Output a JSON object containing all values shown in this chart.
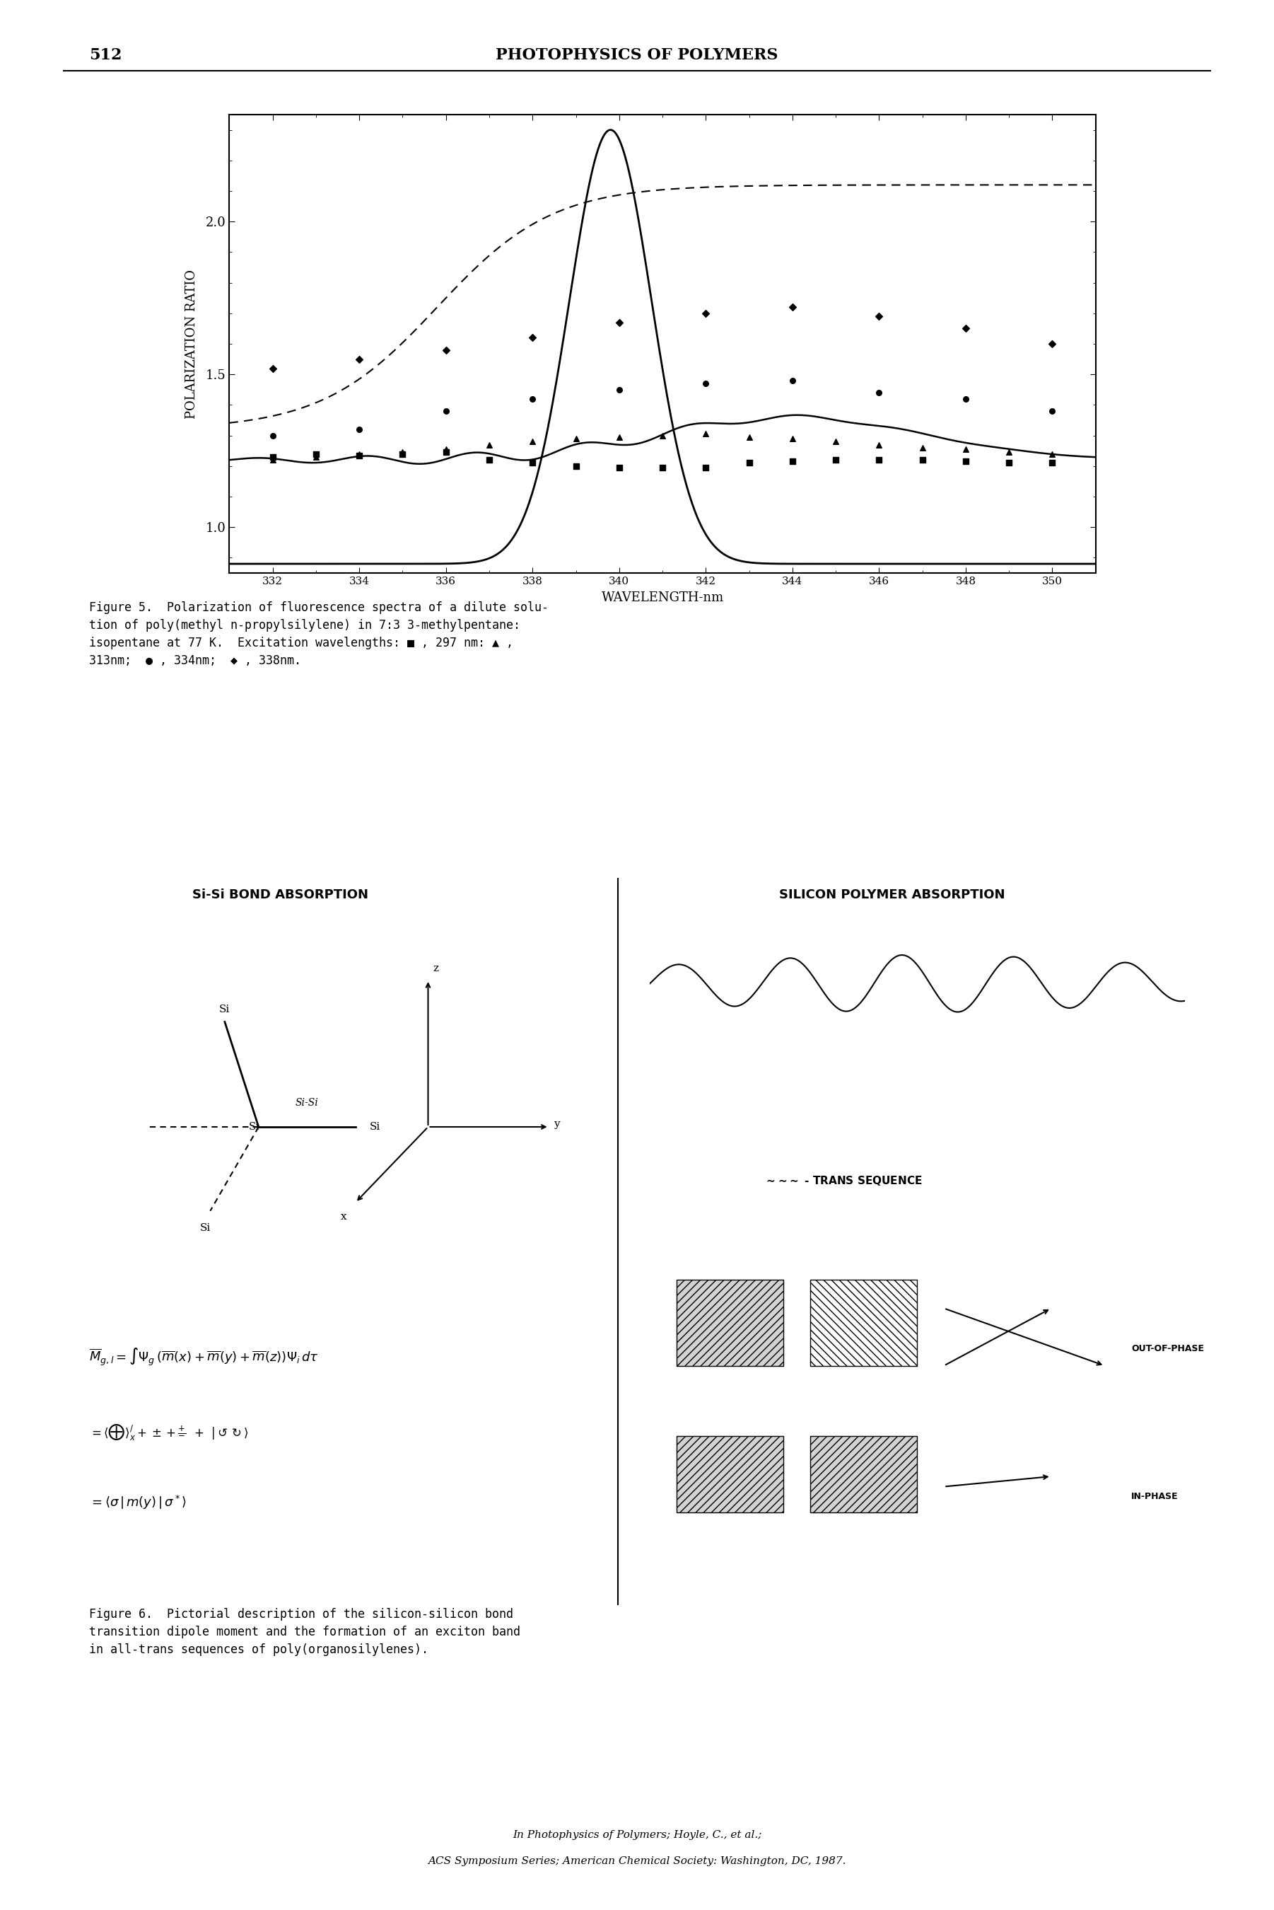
{
  "page_number": "512",
  "header_title": "PHOTOPHYSICS OF POLYMERS",
  "fig5_caption": "Figure 5.  Polarization of fluorescence spectra of a dilute solu-\ntion of poly(methyl n-propylsilylene) in 7:3 3-methylpentane:\nisopentane at 77 K.  Excitation wavelengths: ■ , 297 nm: ▲ ,\n313nm;  ● , 334nm;  ◆ , 338nm.",
  "fig6_caption": "Figure 6.  Pictorial description of the silicon-silicon bond\ntransition dipole moment and the formation of an exciton band\nin all-trans sequences of poly(organosilylenes).",
  "footer_line1": "In Photophysics of Polymers; Hoyle, C., et al.;",
  "footer_line2": "ACS Symposium Series; American Chemical Society: Washington, DC, 1987.",
  "ylabel": "POLARIZATION RATIO",
  "xlabel": "WAVELENGTH-nm",
  "xlim": [
    331,
    351
  ],
  "ylim": [
    0.85,
    2.3
  ],
  "yticks": [
    1.0,
    1.5,
    2.0
  ],
  "xticks": [
    332,
    334,
    336,
    338,
    340,
    342,
    344,
    346,
    348,
    350
  ],
  "background_color": "#ffffff"
}
